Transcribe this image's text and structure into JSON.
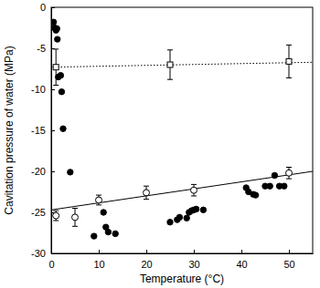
{
  "chart_data": {
    "type": "scatter",
    "xlabel": "Temperature (°C)",
    "ylabel": "Cavitation pressure of water (MPa)",
    "xlim": [
      0,
      55
    ],
    "ylim": [
      -30,
      0
    ],
    "xticks": [
      0,
      10,
      20,
      30,
      40,
      50
    ],
    "yticks": [
      -30,
      -25,
      -20,
      -15,
      -10,
      -5,
      0
    ],
    "grid": false,
    "series": [
      {
        "type": "line",
        "color": "#000000",
        "line_style": "solid",
        "x": [
          0,
          55
        ],
        "values": [
          -24.7,
          -20.0
        ]
      },
      {
        "type": "line",
        "color": "#000000",
        "line_style": "dotted",
        "x": [
          0,
          55
        ],
        "values": [
          -7.3,
          -6.7
        ]
      },
      {
        "type": "scatter",
        "color": "#000000",
        "marker": "circle",
        "x": [
          0.5,
          0.7,
          1.0,
          1.2,
          1.3,
          1.5,
          2.0,
          2.2,
          2.5,
          4.0,
          9.0,
          11.0,
          11.5,
          12.0,
          13.5,
          25.0,
          26.5,
          27.0,
          28.5,
          29.0,
          29.5,
          30.0,
          30.5,
          32.0,
          41.0,
          41.5,
          42.5,
          43.0,
          45.0,
          46.0,
          47.0,
          48.0,
          49.0
        ],
        "values": [
          -1.8,
          -2.5,
          -2.8,
          -2.6,
          -3.9,
          -8.5,
          -8.3,
          -10.3,
          -14.8,
          -20.1,
          -27.9,
          -25.0,
          -26.8,
          -27.4,
          -27.6,
          -26.2,
          -25.9,
          -25.6,
          -25.7,
          -25.0,
          -24.8,
          -24.7,
          -24.6,
          -24.7,
          -22.0,
          -22.5,
          -22.8,
          -22.9,
          -21.8,
          -21.8,
          -20.5,
          -21.8,
          -21.8
        ]
      },
      {
        "type": "scatter",
        "color": "#000000",
        "marker": "circle-open",
        "x": [
          1,
          5,
          10,
          20,
          30,
          50
        ],
        "values": [
          -25.4,
          -25.6,
          -23.5,
          -22.6,
          -22.3,
          -20.2
        ],
        "errors": [
          0.6,
          1.1,
          0.6,
          0.8,
          0.7,
          0.7
        ]
      },
      {
        "type": "scatter",
        "color": "#000000",
        "marker": "square-open",
        "x": [
          1,
          25,
          50
        ],
        "values": [
          -7.3,
          -7.0,
          -6.6
        ],
        "errors": [
          2.2,
          1.8,
          2.0
        ]
      }
    ]
  }
}
